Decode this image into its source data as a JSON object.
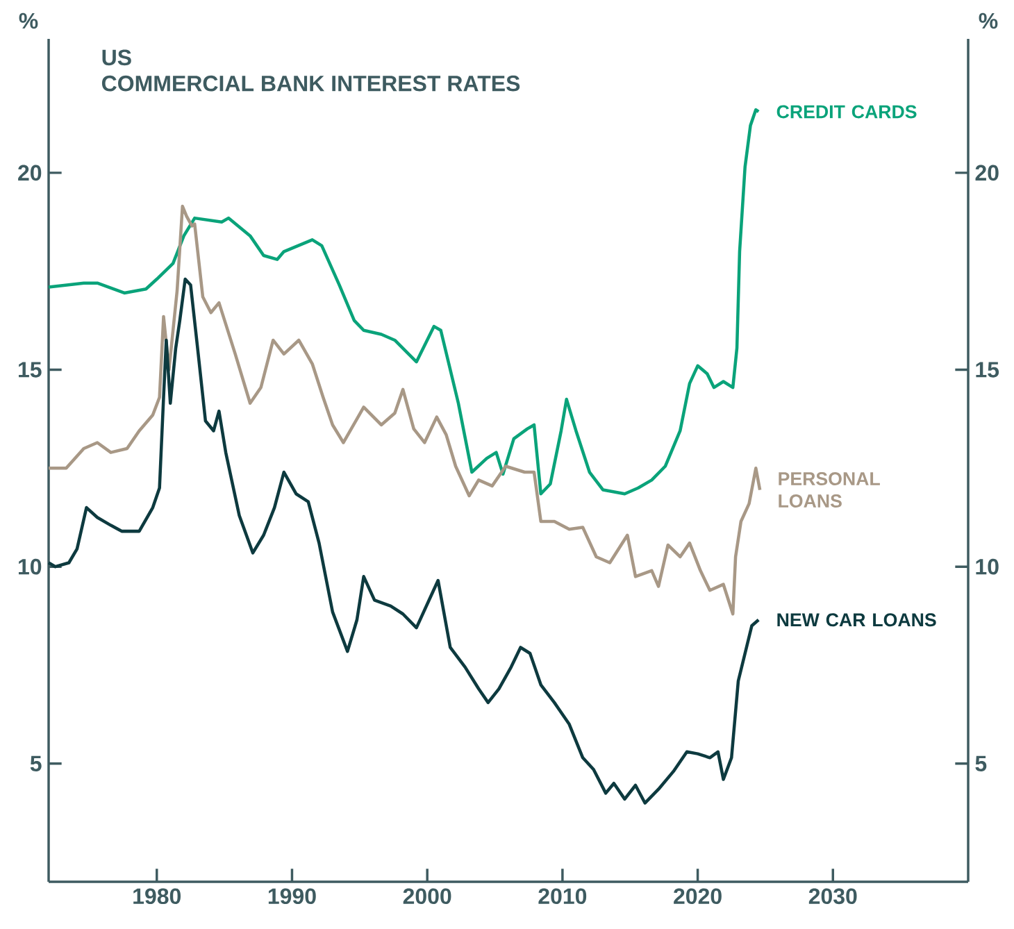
{
  "chart_data": {
    "type": "line",
    "title": "US",
    "subtitle": "COMMERCIAL BANK INTEREST RATES",
    "ylabel": "%",
    "y2label": "%",
    "xlim": [
      1972,
      2040
    ],
    "xticks": [
      1980,
      1990,
      2000,
      2010,
      2020,
      2030
    ],
    "ylim": [
      2,
      23.4
    ],
    "yticks": [
      5,
      10,
      15,
      20
    ],
    "y2lim": [
      2,
      23.4
    ],
    "y2ticks": [
      5,
      10,
      15,
      20
    ],
    "grid": false,
    "marker": "none",
    "line_style": "solid",
    "series": [
      {
        "name": "CREDIT CARDS",
        "color": "#0aa37a",
        "x": [
          1972,
          1974.6,
          1975.6,
          1977.6,
          1979.2,
          1980,
          1981.2,
          1982,
          1982.8,
          1984.8,
          1985.3,
          1986.9,
          1987.9,
          1988.9,
          1989.4,
          1991.5,
          1992.2,
          1993.5,
          1994.6,
          1995.3,
          1996.6,
          1997.6,
          1999.2,
          2000.5,
          2001,
          2002.3,
          2003.3,
          2004.4,
          2005.1,
          2005.6,
          2006.4,
          2007.4,
          2007.9,
          2008.4,
          2009.1,
          2009.9,
          2010.3,
          2011,
          2012,
          2013,
          2014.6,
          2015.6,
          2016.6,
          2017.6,
          2018.7,
          2019.4,
          2020,
          2020.7,
          2021.2,
          2021.9,
          2022.6,
          2022.9,
          2023.1,
          2023.5,
          2023.9,
          2024.3,
          2024.5
        ],
        "values": [
          17.1,
          17.2,
          17.2,
          16.95,
          17.05,
          17.3,
          17.7,
          18.4,
          18.85,
          18.75,
          18.85,
          18.4,
          17.9,
          17.8,
          18.0,
          18.3,
          18.15,
          17.15,
          16.25,
          16.0,
          15.9,
          15.75,
          15.2,
          16.1,
          16.0,
          14.15,
          12.4,
          12.75,
          12.9,
          12.35,
          13.25,
          13.5,
          13.6,
          11.85,
          12.1,
          13.45,
          14.25,
          13.45,
          12.4,
          11.95,
          11.85,
          12.0,
          12.2,
          12.55,
          13.45,
          14.65,
          15.1,
          14.9,
          14.55,
          14.7,
          14.55,
          15.55,
          18.0,
          20.15,
          21.2,
          21.6,
          21.55
        ]
      },
      {
        "name": "PERSONAL LOANS",
        "color": "#a89886",
        "x": [
          1972,
          1973.3,
          1974.6,
          1975.6,
          1976.6,
          1977.8,
          1978.7,
          1979.7,
          1980.2,
          1980.5,
          1980.9,
          1981.5,
          1981.9,
          1982.2,
          1982.6,
          1982.8,
          1983.4,
          1984,
          1984.6,
          1985.8,
          1986.9,
          1987.7,
          1988.6,
          1989.4,
          1990.5,
          1991.5,
          1992.3,
          1993,
          1993.8,
          1995.3,
          1996.6,
          1997.6,
          1998.2,
          1999,
          1999.8,
          2000.7,
          2001.4,
          2002.1,
          2003.1,
          2003.8,
          2004.8,
          2005.8,
          2007.2,
          2007.9,
          2008.4,
          2009.4,
          2010.5,
          2011.5,
          2012.5,
          2013.5,
          2014.8,
          2015.4,
          2016.6,
          2017.1,
          2017.8,
          2018.7,
          2019.4,
          2020.2,
          2020.9,
          2021.9,
          2022.6,
          2022.8,
          2023.2,
          2023.8,
          2024.3,
          2024.6
        ],
        "values": [
          12.5,
          12.5,
          13.0,
          13.15,
          12.9,
          13.0,
          13.45,
          13.85,
          14.3,
          16.35,
          15.0,
          17.0,
          19.15,
          18.9,
          18.65,
          18.7,
          16.85,
          16.45,
          16.7,
          15.4,
          14.15,
          14.55,
          15.75,
          15.4,
          15.75,
          15.15,
          14.3,
          13.6,
          13.15,
          14.05,
          13.6,
          13.9,
          14.5,
          13.5,
          13.15,
          13.8,
          13.35,
          12.55,
          11.8,
          12.2,
          12.05,
          12.55,
          12.4,
          12.4,
          11.15,
          11.15,
          10.95,
          11.0,
          10.25,
          10.1,
          10.8,
          9.75,
          9.9,
          9.5,
          10.55,
          10.25,
          10.6,
          9.9,
          9.4,
          9.55,
          8.8,
          10.25,
          11.15,
          11.6,
          12.5,
          11.95
        ]
      },
      {
        "name": "NEW CAR LOANS",
        "color": "#0d3a3f",
        "x": [
          1972,
          1972.5,
          1973.5,
          1974.1,
          1974.8,
          1975.6,
          1976.6,
          1977.4,
          1978.7,
          1979.7,
          1980.2,
          1980.5,
          1980.7,
          1981,
          1981.4,
          1981.7,
          1982.1,
          1982.5,
          1983,
          1983.6,
          1984.2,
          1984.6,
          1985.1,
          1986.1,
          1987.1,
          1987.9,
          1988.7,
          1989.4,
          1990.3,
          1991.2,
          1992,
          1993,
          1994.1,
          1994.8,
          1995.3,
          1996.1,
          1997.3,
          1998.2,
          1999.2,
          2000.2,
          2000.8,
          2001.7,
          2002.8,
          2003.8,
          2004.5,
          2005.3,
          2006.2,
          2006.9,
          2007.6,
          2008.4,
          2009.4,
          2010.5,
          2011.5,
          2012.3,
          2013.2,
          2013.8,
          2014.6,
          2015.4,
          2016.1,
          2017.1,
          2018.2,
          2019.2,
          2020,
          2020.9,
          2021.5,
          2021.9,
          2022.5,
          2023,
          2023.5,
          2024,
          2024.5
        ],
        "values": [
          10.1,
          10.0,
          10.1,
          10.45,
          11.5,
          11.25,
          11.05,
          10.9,
          10.9,
          11.5,
          12.0,
          14.3,
          15.75,
          14.15,
          15.55,
          16.25,
          17.3,
          17.15,
          15.6,
          13.7,
          13.45,
          13.95,
          12.9,
          11.3,
          10.35,
          10.8,
          11.5,
          12.4,
          11.85,
          11.65,
          10.6,
          8.85,
          7.85,
          8.65,
          9.75,
          9.15,
          9.0,
          8.8,
          8.45,
          9.2,
          9.65,
          7.95,
          7.45,
          6.9,
          6.55,
          6.9,
          7.45,
          7.95,
          7.8,
          7.0,
          6.55,
          6.0,
          5.15,
          4.85,
          4.25,
          4.5,
          4.1,
          4.45,
          4.0,
          4.35,
          4.8,
          5.3,
          5.25,
          5.15,
          5.3,
          4.6,
          5.15,
          7.1,
          7.8,
          8.5,
          8.65
        ]
      }
    ]
  }
}
